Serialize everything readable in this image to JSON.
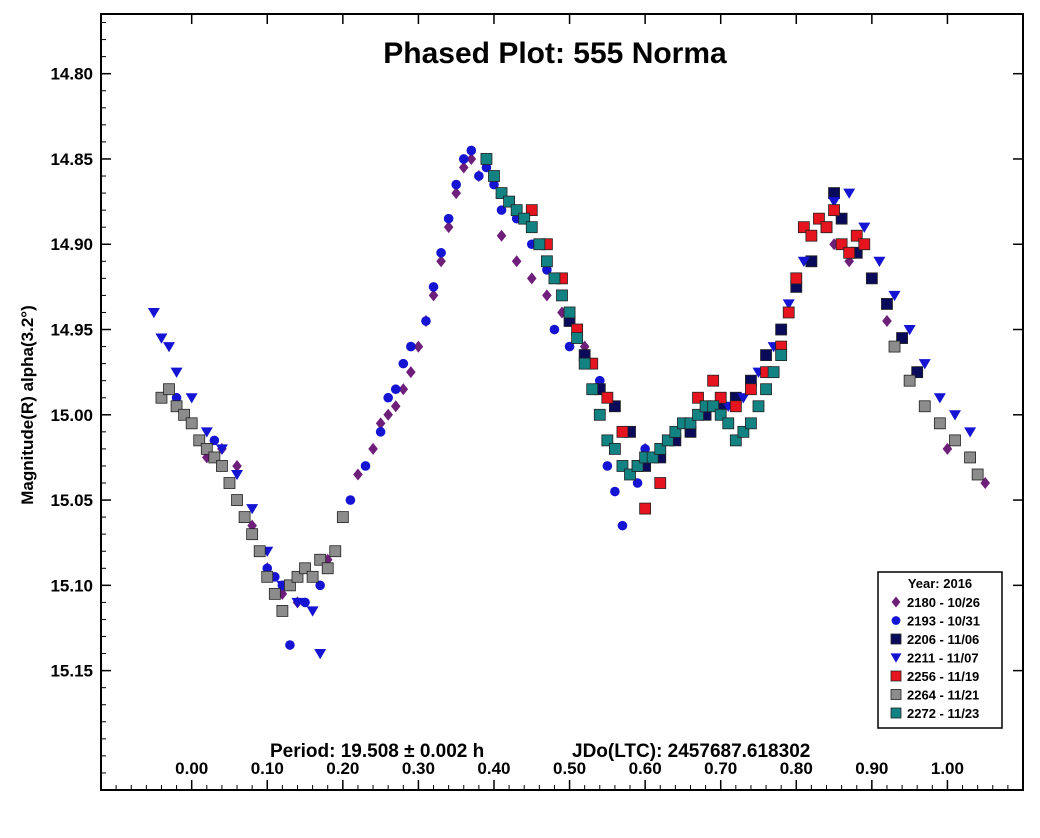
{
  "chart_data": {
    "type": "scatter",
    "title": "Phased Plot: 555 Norma",
    "ylabel": "Magnitude(R) alpha(3.2°)",
    "xlabel": "",
    "xlim": [
      -0.12,
      1.1
    ],
    "ylim": [
      15.22,
      14.765
    ],
    "y_inverted": true,
    "x_ticks": [
      "0.00",
      "0.10",
      "0.20",
      "0.30",
      "0.40",
      "0.50",
      "0.60",
      "0.70",
      "0.80",
      "0.90",
      "1.00"
    ],
    "y_ticks": [
      "14.80",
      "14.85",
      "14.90",
      "14.95",
      "15.00",
      "15.05",
      "15.10",
      "15.15"
    ],
    "footer": {
      "period": "Period: 19.508 ± 0.002 h",
      "epoch": "JDo(LTC): 2457687.618302"
    },
    "legend": {
      "title": "Year: 2016",
      "position": "bottom-right"
    },
    "series": [
      {
        "name": "2180 - 10/26",
        "marker": "diamond",
        "color": "#6e1f7a",
        "points": [
          [
            0.0,
            15.005
          ],
          [
            0.02,
            15.025
          ],
          [
            0.04,
            15.02
          ],
          [
            0.06,
            15.03
          ],
          [
            0.08,
            15.065
          ],
          [
            0.1,
            15.09
          ],
          [
            0.12,
            15.105
          ],
          [
            0.14,
            15.11
          ],
          [
            0.16,
            15.095
          ],
          [
            0.18,
            15.085
          ],
          [
            0.2,
            15.06
          ],
          [
            0.22,
            15.035
          ],
          [
            0.24,
            15.02
          ],
          [
            0.25,
            15.005
          ],
          [
            0.26,
            15.0
          ],
          [
            0.27,
            14.995
          ],
          [
            0.28,
            14.985
          ],
          [
            0.29,
            14.975
          ],
          [
            0.3,
            14.96
          ],
          [
            0.31,
            14.945
          ],
          [
            0.32,
            14.93
          ],
          [
            0.33,
            14.91
          ],
          [
            0.34,
            14.89
          ],
          [
            0.35,
            14.87
          ],
          [
            0.36,
            14.855
          ],
          [
            0.37,
            14.85
          ],
          [
            0.38,
            14.86
          ],
          [
            0.41,
            14.895
          ],
          [
            0.43,
            14.91
          ],
          [
            0.45,
            14.92
          ],
          [
            0.47,
            14.93
          ],
          [
            0.49,
            14.94
          ],
          [
            0.52,
            14.96
          ],
          [
            0.55,
            14.99
          ],
          [
            0.58,
            15.01
          ],
          [
            0.6,
            15.02
          ],
          [
            0.85,
            14.9
          ],
          [
            0.87,
            14.91
          ],
          [
            0.92,
            14.945
          ],
          [
            0.96,
            14.975
          ],
          [
            1.0,
            15.02
          ],
          [
            1.05,
            15.04
          ]
        ]
      },
      {
        "name": "2193 - 10/31",
        "marker": "circle",
        "color": "#1414d2",
        "points": [
          [
            -0.02,
            14.99
          ],
          [
            0.0,
            15.005
          ],
          [
            0.03,
            15.015
          ],
          [
            0.08,
            15.07
          ],
          [
            0.1,
            15.09
          ],
          [
            0.11,
            15.095
          ],
          [
            0.12,
            15.1
          ],
          [
            0.13,
            15.135
          ],
          [
            0.15,
            15.11
          ],
          [
            0.17,
            15.1
          ],
          [
            0.19,
            15.08
          ],
          [
            0.21,
            15.05
          ],
          [
            0.23,
            15.03
          ],
          [
            0.25,
            15.01
          ],
          [
            0.26,
            14.99
          ],
          [
            0.27,
            14.985
          ],
          [
            0.28,
            14.97
          ],
          [
            0.29,
            14.96
          ],
          [
            0.31,
            14.945
          ],
          [
            0.32,
            14.925
          ],
          [
            0.33,
            14.905
          ],
          [
            0.34,
            14.885
          ],
          [
            0.35,
            14.865
          ],
          [
            0.36,
            14.85
          ],
          [
            0.37,
            14.845
          ],
          [
            0.38,
            14.86
          ],
          [
            0.39,
            14.855
          ],
          [
            0.4,
            14.865
          ],
          [
            0.41,
            14.88
          ],
          [
            0.43,
            14.885
          ],
          [
            0.45,
            14.9
          ],
          [
            0.47,
            14.915
          ],
          [
            0.48,
            14.95
          ],
          [
            0.5,
            14.96
          ],
          [
            0.52,
            14.965
          ],
          [
            0.54,
            14.98
          ],
          [
            0.55,
            15.03
          ],
          [
            0.56,
            15.045
          ],
          [
            0.57,
            15.065
          ],
          [
            0.59,
            15.04
          ],
          [
            0.6,
            15.02
          ]
        ]
      },
      {
        "name": "2206 - 11/06",
        "marker": "square",
        "color": "#0a0a5a",
        "points": [
          [
            0.5,
            14.945
          ],
          [
            0.52,
            14.965
          ],
          [
            0.54,
            14.985
          ],
          [
            0.56,
            14.995
          ],
          [
            0.58,
            15.01
          ],
          [
            0.6,
            15.03
          ],
          [
            0.62,
            15.025
          ],
          [
            0.64,
            15.015
          ],
          [
            0.66,
            15.01
          ],
          [
            0.68,
            15.0
          ],
          [
            0.7,
            14.995
          ],
          [
            0.72,
            14.99
          ],
          [
            0.74,
            14.98
          ],
          [
            0.76,
            14.965
          ],
          [
            0.78,
            14.95
          ],
          [
            0.8,
            14.925
          ],
          [
            0.82,
            14.91
          ],
          [
            0.84,
            14.89
          ],
          [
            0.85,
            14.87
          ],
          [
            0.86,
            14.885
          ],
          [
            0.88,
            14.905
          ],
          [
            0.9,
            14.92
          ],
          [
            0.92,
            14.935
          ],
          [
            0.94,
            14.955
          ],
          [
            0.96,
            14.975
          ]
        ]
      },
      {
        "name": "2211 - 11/07",
        "marker": "triangle-down",
        "color": "#1414d2",
        "points": [
          [
            -0.05,
            14.94
          ],
          [
            -0.04,
            14.955
          ],
          [
            -0.03,
            14.96
          ],
          [
            -0.02,
            14.975
          ],
          [
            0.0,
            14.99
          ],
          [
            0.02,
            15.01
          ],
          [
            0.04,
            15.02
          ],
          [
            0.06,
            15.035
          ],
          [
            0.08,
            15.055
          ],
          [
            0.1,
            15.08
          ],
          [
            0.12,
            15.1
          ],
          [
            0.14,
            15.11
          ],
          [
            0.16,
            15.115
          ],
          [
            0.17,
            15.14
          ],
          [
            0.71,
            14.995
          ],
          [
            0.73,
            14.99
          ],
          [
            0.75,
            14.975
          ],
          [
            0.77,
            14.96
          ],
          [
            0.79,
            14.935
          ],
          [
            0.81,
            14.91
          ],
          [
            0.83,
            14.885
          ],
          [
            0.85,
            14.875
          ],
          [
            0.87,
            14.87
          ],
          [
            0.89,
            14.89
          ],
          [
            0.91,
            14.91
          ],
          [
            0.93,
            14.93
          ],
          [
            0.95,
            14.95
          ],
          [
            0.97,
            14.97
          ],
          [
            0.99,
            14.99
          ],
          [
            1.01,
            15.0
          ],
          [
            1.03,
            15.01
          ]
        ]
      },
      {
        "name": "2256 - 11/19",
        "marker": "square",
        "color": "#e6141e",
        "points": [
          [
            0.45,
            14.88
          ],
          [
            0.47,
            14.9
          ],
          [
            0.49,
            14.92
          ],
          [
            0.51,
            14.95
          ],
          [
            0.53,
            14.97
          ],
          [
            0.55,
            14.99
          ],
          [
            0.57,
            15.01
          ],
          [
            0.59,
            15.03
          ],
          [
            0.6,
            15.055
          ],
          [
            0.62,
            15.04
          ],
          [
            0.67,
            14.99
          ],
          [
            0.69,
            14.98
          ],
          [
            0.7,
            14.99
          ],
          [
            0.72,
            14.995
          ],
          [
            0.74,
            14.985
          ],
          [
            0.76,
            14.975
          ],
          [
            0.78,
            14.96
          ],
          [
            0.79,
            14.94
          ],
          [
            0.8,
            14.92
          ],
          [
            0.81,
            14.89
          ],
          [
            0.82,
            14.895
          ],
          [
            0.83,
            14.885
          ],
          [
            0.84,
            14.89
          ],
          [
            0.85,
            14.88
          ],
          [
            0.86,
            14.9
          ],
          [
            0.87,
            14.905
          ],
          [
            0.88,
            14.895
          ],
          [
            0.89,
            14.9
          ]
        ]
      },
      {
        "name": "2264 - 11/21",
        "marker": "square",
        "color": "#8c8c8c",
        "points": [
          [
            -0.04,
            14.99
          ],
          [
            -0.03,
            14.985
          ],
          [
            -0.02,
            14.995
          ],
          [
            -0.01,
            15.0
          ],
          [
            0.0,
            15.005
          ],
          [
            0.01,
            15.015
          ],
          [
            0.02,
            15.02
          ],
          [
            0.03,
            15.025
          ],
          [
            0.04,
            15.03
          ],
          [
            0.05,
            15.04
          ],
          [
            0.06,
            15.05
          ],
          [
            0.07,
            15.06
          ],
          [
            0.08,
            15.07
          ],
          [
            0.09,
            15.08
          ],
          [
            0.1,
            15.095
          ],
          [
            0.11,
            15.105
          ],
          [
            0.12,
            15.115
          ],
          [
            0.13,
            15.1
          ],
          [
            0.14,
            15.095
          ],
          [
            0.15,
            15.09
          ],
          [
            0.16,
            15.095
          ],
          [
            0.17,
            15.085
          ],
          [
            0.18,
            15.09
          ],
          [
            0.19,
            15.08
          ],
          [
            0.2,
            15.06
          ],
          [
            0.93,
            14.96
          ],
          [
            0.95,
            14.98
          ],
          [
            0.97,
            14.995
          ],
          [
            0.99,
            15.005
          ],
          [
            1.01,
            15.015
          ],
          [
            1.03,
            15.025
          ],
          [
            1.04,
            15.035
          ]
        ]
      },
      {
        "name": "2272 - 11/23",
        "marker": "square",
        "color": "#138282",
        "points": [
          [
            0.39,
            14.85
          ],
          [
            0.4,
            14.86
          ],
          [
            0.41,
            14.87
          ],
          [
            0.42,
            14.875
          ],
          [
            0.43,
            14.88
          ],
          [
            0.44,
            14.885
          ],
          [
            0.45,
            14.89
          ],
          [
            0.46,
            14.9
          ],
          [
            0.47,
            14.91
          ],
          [
            0.48,
            14.92
          ],
          [
            0.49,
            14.93
          ],
          [
            0.5,
            14.94
          ],
          [
            0.51,
            14.955
          ],
          [
            0.52,
            14.97
          ],
          [
            0.53,
            14.985
          ],
          [
            0.54,
            15.0
          ],
          [
            0.55,
            15.015
          ],
          [
            0.56,
            15.02
          ],
          [
            0.57,
            15.03
          ],
          [
            0.58,
            15.035
          ],
          [
            0.59,
            15.03
          ],
          [
            0.6,
            15.025
          ],
          [
            0.61,
            15.025
          ],
          [
            0.62,
            15.02
          ],
          [
            0.63,
            15.015
          ],
          [
            0.64,
            15.01
          ],
          [
            0.65,
            15.005
          ],
          [
            0.66,
            15.005
          ],
          [
            0.67,
            15.0
          ],
          [
            0.68,
            14.995
          ],
          [
            0.69,
            14.995
          ],
          [
            0.7,
            15.0
          ],
          [
            0.71,
            15.005
          ],
          [
            0.72,
            15.015
          ],
          [
            0.73,
            15.01
          ],
          [
            0.74,
            15.005
          ],
          [
            0.75,
            14.995
          ],
          [
            0.76,
            14.985
          ],
          [
            0.77,
            14.975
          ],
          [
            0.78,
            14.965
          ]
        ]
      }
    ]
  }
}
